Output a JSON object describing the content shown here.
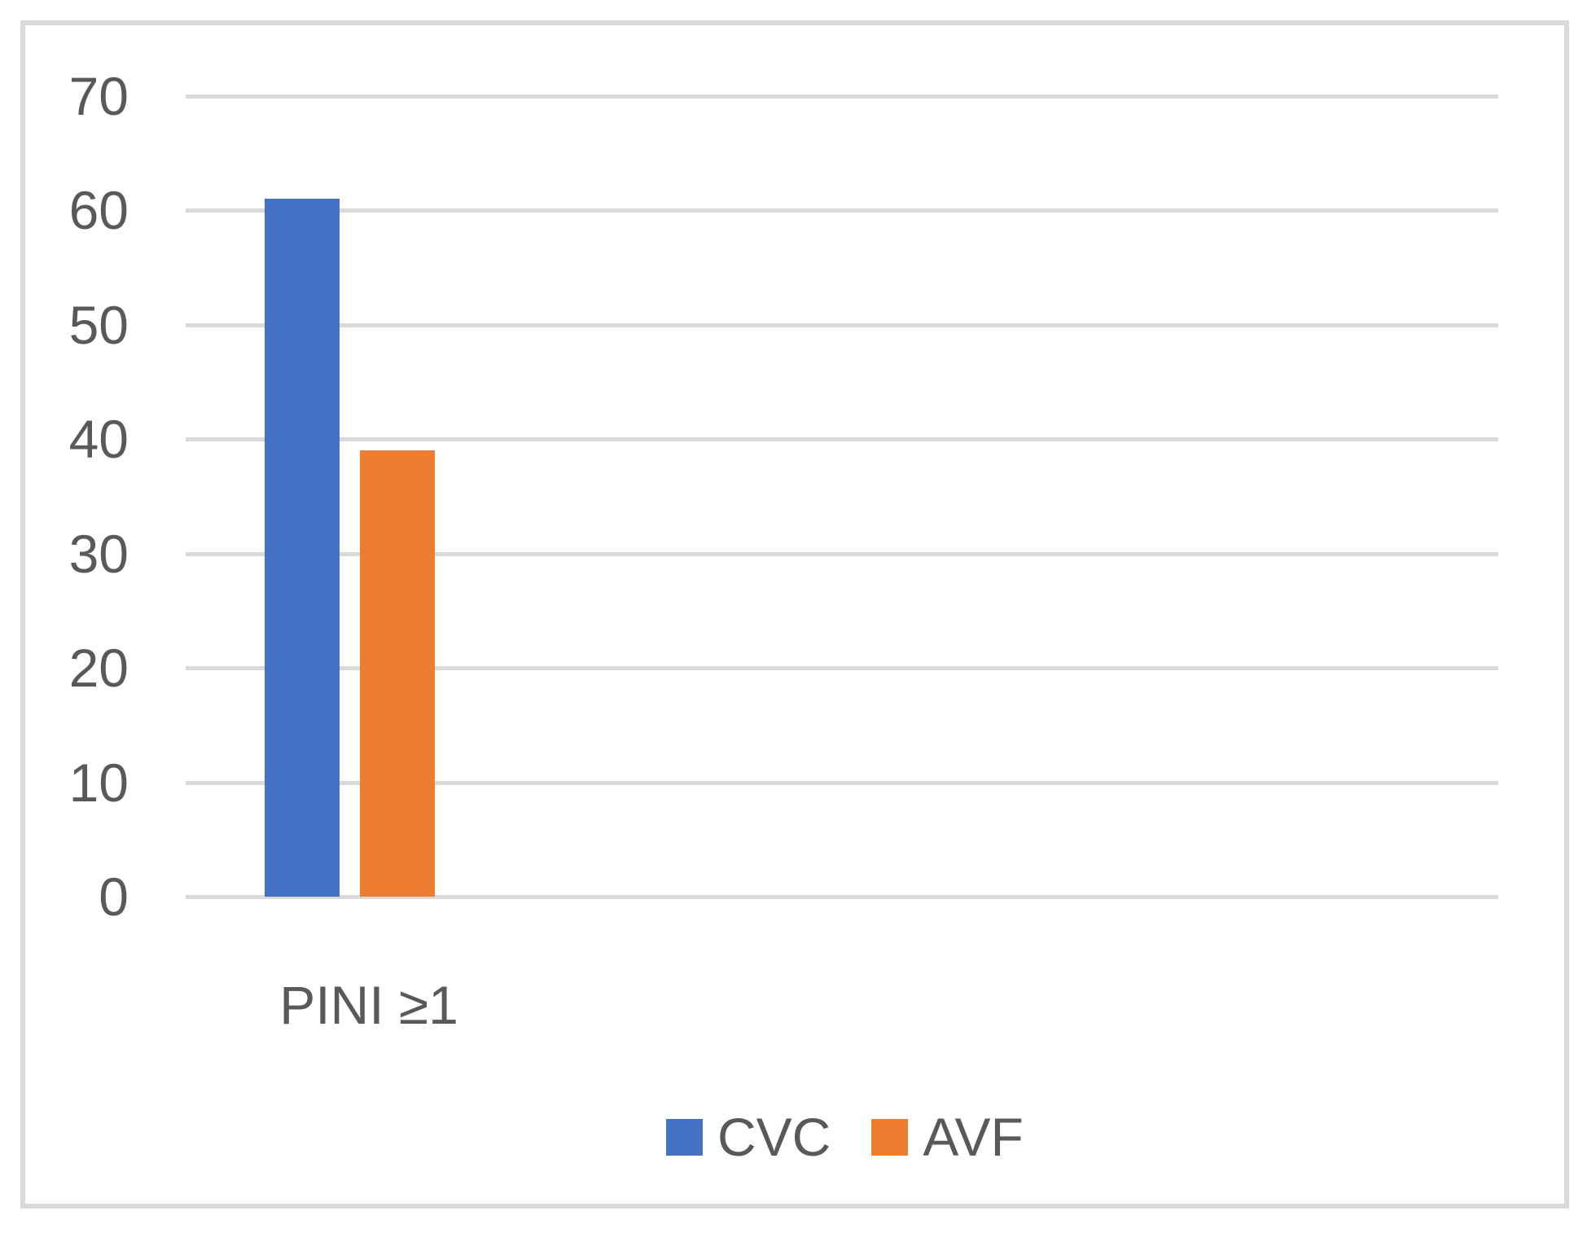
{
  "chart_data": {
    "type": "bar",
    "categories": [
      "PINI ≥1"
    ],
    "series": [
      {
        "name": "CVC",
        "values": [
          61
        ],
        "color": "#4472C4"
      },
      {
        "name": "AVF",
        "values": [
          39
        ],
        "color": "#ED7D31"
      }
    ],
    "title": "",
    "xlabel": "",
    "ylabel": "",
    "ylim": [
      0,
      70
    ],
    "yticks": [
      0,
      10,
      20,
      30,
      40,
      50,
      60,
      70
    ],
    "grid": true,
    "legend_position": "bottom",
    "colors": {
      "gridline": "#D9D9D9",
      "axis_line": "#D9D9D9",
      "frame_border": "#D9D9D9",
      "axis_text": "#595959",
      "background": "#FFFFFF"
    }
  }
}
